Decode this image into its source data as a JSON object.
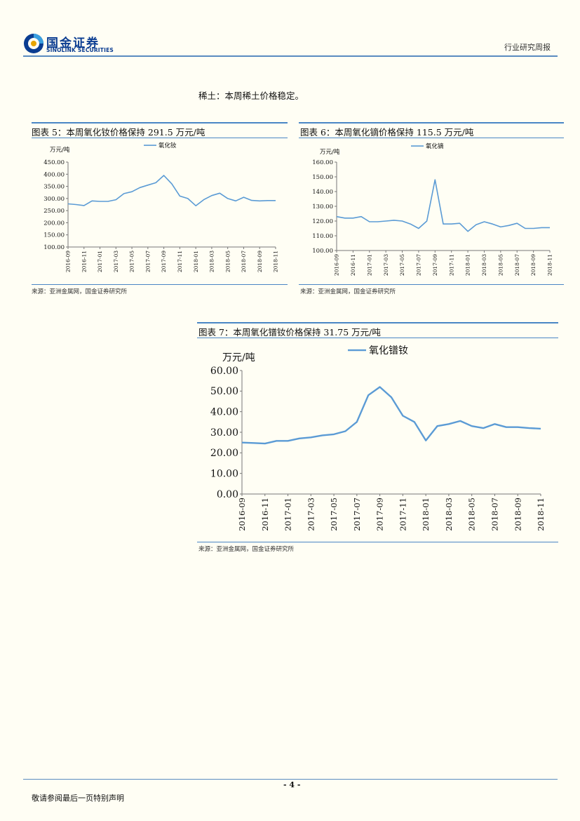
{
  "header": {
    "logo_cn": "国金证券",
    "logo_en": "SINOLINK SECURITIES",
    "report_type": "行业研究周报"
  },
  "intro": "稀土：本周稀土价格稳定。",
  "colors": {
    "accent": "#4a86c5",
    "series": "#5b9bd5"
  },
  "charts": [
    {
      "title": "图表 5：本周氧化钕价格保持 291.5 万元/吨",
      "source": "来源：亚洲金属网，国金证券研究所",
      "legend": "氧化钕",
      "unit": "万元/吨",
      "y_ticks": [
        "100.00",
        "150.00",
        "200.00",
        "250.00",
        "300.00",
        "350.00",
        "400.00",
        "450.00"
      ],
      "x_ticks": [
        "2016-09",
        "2016-11",
        "2017-01",
        "2017-03",
        "2017-05",
        "2017-07",
        "2017-09",
        "2017-11",
        "2018-01",
        "2018-03",
        "2018-05",
        "2018-07",
        "2018-09",
        "2018-11"
      ]
    },
    {
      "title": "图表 6：本周氧化镝价格保持 115.5 万元/吨",
      "source": "来源：亚洲金属网，国金证券研究所",
      "legend": "氧化镝",
      "unit": "万元/吨",
      "y_ticks": [
        "100.00",
        "110.00",
        "120.00",
        "130.00",
        "140.00",
        "150.00",
        "160.00"
      ],
      "x_ticks": [
        "2016-09",
        "2016-11",
        "2017-01",
        "2017-03",
        "2017-05",
        "2017-07",
        "2017-09",
        "2017-11",
        "2018-01",
        "2018-03",
        "2018-05",
        "2018-07",
        "2018-09",
        "2018-11"
      ]
    },
    {
      "title": "图表 7：本周氧化镨钕价格保持 31.75 万元/吨",
      "source": "来源：亚洲金属网，国金证券研究所",
      "legend": "氧化镨钕",
      "unit": "万元/吨",
      "y_ticks": [
        "0.00",
        "10.00",
        "20.00",
        "30.00",
        "40.00",
        "50.00",
        "60.00"
      ],
      "x_ticks": [
        "2016-09",
        "2016-11",
        "2017-01",
        "2017-03",
        "2017-05",
        "2017-07",
        "2017-09",
        "2017-11",
        "2018-01",
        "2018-03",
        "2018-05",
        "2018-07",
        "2018-09",
        "2018-11"
      ]
    }
  ],
  "chart_data": [
    {
      "type": "line",
      "ylim": [
        100,
        450
      ],
      "ylabel": "万元/吨",
      "series": [
        {
          "name": "氧化钕",
          "x": [
            "2016-09",
            "2016-10",
            "2016-11",
            "2016-12",
            "2017-01",
            "2017-02",
            "2017-03",
            "2017-04",
            "2017-05",
            "2017-06",
            "2017-07",
            "2017-08",
            "2017-09",
            "2017-10",
            "2017-11",
            "2017-12",
            "2018-01",
            "2018-02",
            "2018-03",
            "2018-04",
            "2018-05",
            "2018-06",
            "2018-07",
            "2018-08",
            "2018-09",
            "2018-10",
            "2018-11"
          ],
          "y": [
            278,
            275,
            271,
            290,
            288,
            288,
            295,
            320,
            328,
            345,
            355,
            365,
            395,
            360,
            310,
            300,
            270,
            295,
            312,
            322,
            300,
            290,
            305,
            292,
            290,
            291.5,
            291.5
          ]
        }
      ]
    },
    {
      "type": "line",
      "ylim": [
        100,
        160
      ],
      "ylabel": "万元/吨",
      "series": [
        {
          "name": "氧化镝",
          "x": [
            "2016-09",
            "2016-10",
            "2016-11",
            "2016-12",
            "2017-01",
            "2017-02",
            "2017-03",
            "2017-04",
            "2017-05",
            "2017-06",
            "2017-07",
            "2017-08",
            "2017-09",
            "2017-10",
            "2017-11",
            "2017-12",
            "2018-01",
            "2018-02",
            "2018-03",
            "2018-04",
            "2018-05",
            "2018-06",
            "2018-07",
            "2018-08",
            "2018-09",
            "2018-10",
            "2018-11"
          ],
          "y": [
            123,
            122,
            122,
            123,
            119.5,
            119.5,
            120,
            120.5,
            120,
            118,
            115,
            120,
            148,
            118,
            118,
            118.5,
            113,
            117.5,
            119.5,
            118,
            116,
            117,
            118.5,
            115,
            115,
            115.5,
            115.5
          ]
        }
      ]
    },
    {
      "type": "line",
      "ylim": [
        0,
        60
      ],
      "ylabel": "万元/吨",
      "series": [
        {
          "name": "氧化镨钕",
          "x": [
            "2016-09",
            "2016-10",
            "2016-11",
            "2016-12",
            "2017-01",
            "2017-02",
            "2017-03",
            "2017-04",
            "2017-05",
            "2017-06",
            "2017-07",
            "2017-08",
            "2017-09",
            "2017-10",
            "2017-11",
            "2017-12",
            "2018-01",
            "2018-02",
            "2018-03",
            "2018-04",
            "2018-05",
            "2018-06",
            "2018-07",
            "2018-08",
            "2018-09",
            "2018-10",
            "2018-11"
          ],
          "y": [
            25,
            24.8,
            24.5,
            25.8,
            25.8,
            27,
            27.5,
            28.5,
            29,
            30.5,
            35,
            48,
            52,
            47,
            38,
            35,
            26,
            33,
            34,
            35.5,
            33,
            32,
            34,
            32.5,
            32.5,
            32,
            31.75
          ]
        }
      ]
    }
  ],
  "footer": {
    "page": "- 4 -",
    "disclaimer": "敬请参阅最后一页特别声明"
  }
}
